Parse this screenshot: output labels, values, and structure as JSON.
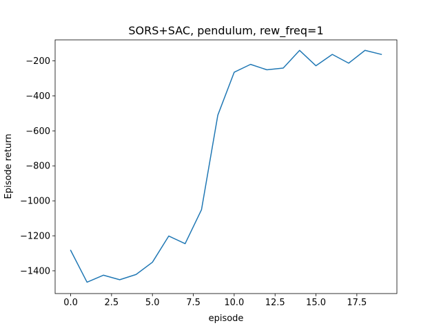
{
  "chart_data": {
    "type": "line",
    "title": "SORS+SAC, pendulum, rew_freq=1",
    "xlabel": "episode",
    "ylabel": "Episode return",
    "xlim": [
      -0.95,
      19.95
    ],
    "ylim": [
      -1530,
      -80
    ],
    "grid": false,
    "legend": "none",
    "line_color": "#1f77b4",
    "x_ticks": [
      0.0,
      2.5,
      5.0,
      7.5,
      10.0,
      12.5,
      15.0,
      17.5
    ],
    "x_tick_labels": [
      "0.0",
      "2.5",
      "5.0",
      "7.5",
      "10.0",
      "12.5",
      "15.0",
      "17.5"
    ],
    "y_ticks": [
      -1400,
      -1200,
      -1000,
      -800,
      -600,
      -400,
      -200
    ],
    "y_tick_labels": [
      "−1400",
      "−1200",
      "−1000",
      "−800",
      "−600",
      "−400",
      "−200"
    ],
    "series": [
      {
        "x": [
          0,
          1,
          2,
          3,
          4,
          5,
          6,
          7,
          8,
          9,
          10,
          11,
          12,
          13,
          14,
          15,
          16,
          17,
          18,
          19
        ],
        "values": [
          -1283,
          -1465,
          -1425,
          -1451,
          -1421,
          -1351,
          -1201,
          -1245,
          -1051,
          -510,
          -265,
          -220,
          -251,
          -241,
          -140,
          -228,
          -163,
          -213,
          -140,
          -163
        ]
      }
    ]
  }
}
